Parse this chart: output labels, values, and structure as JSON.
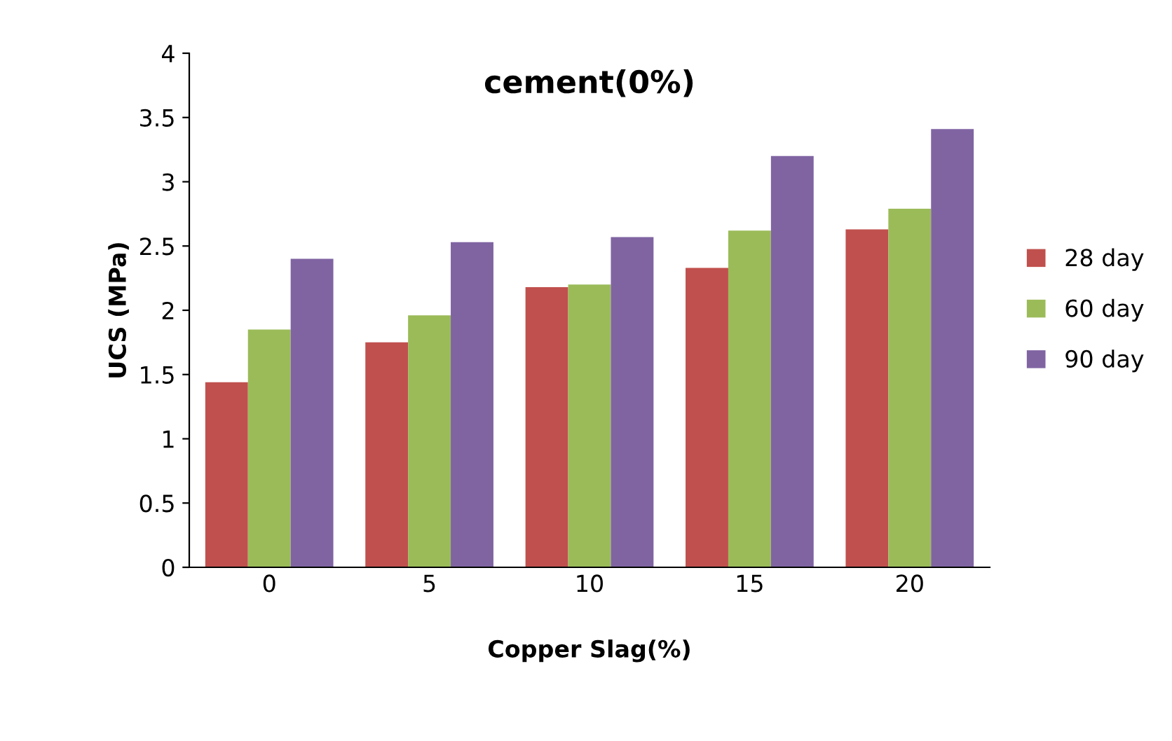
{
  "chart_data": {
    "type": "bar",
    "title": "cement(0%)",
    "xlabel": "Copper Slag(%)",
    "ylabel": "UCS (MPa)",
    "categories": [
      "0",
      "5",
      "10",
      "15",
      "20"
    ],
    "series": [
      {
        "name": "28 day",
        "color": "#c0504d",
        "values": [
          1.44,
          1.75,
          2.18,
          2.33,
          2.63
        ]
      },
      {
        "name": "60 day",
        "color": "#9bbb59",
        "values": [
          1.85,
          1.96,
          2.2,
          2.62,
          2.79
        ]
      },
      {
        "name": "90 day",
        "color": "#8064a2",
        "values": [
          2.4,
          2.53,
          2.57,
          3.2,
          3.41
        ]
      }
    ],
    "ylim": [
      0,
      4
    ],
    "yticks": [
      0,
      0.5,
      1,
      1.5,
      2,
      2.5,
      3,
      3.5,
      4
    ],
    "grid": false,
    "legend": "right"
  }
}
